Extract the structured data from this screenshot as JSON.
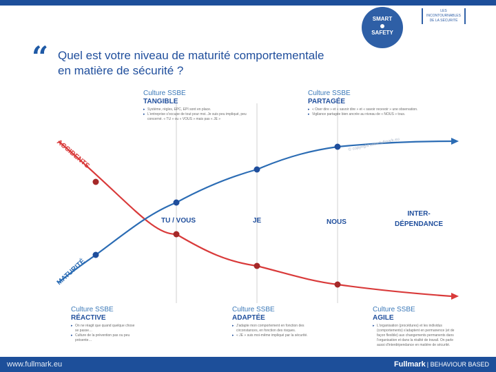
{
  "header": {
    "badge_lines": [
      "SMART",
      "SAFETY"
    ],
    "brand_small_lines": [
      "LES INCONTOURNABLES",
      "DE LA SÉCURITÉ"
    ]
  },
  "question": {
    "line1": "Quel est votre niveau  de maturité comportementale",
    "line2": "en matière de sécurité ?"
  },
  "colors": {
    "maturity": "#2b6cb4",
    "accidents": "#d93a3a",
    "dot_red": "#a52828",
    "dot_blue": "#1f4e9c",
    "text_blue": "#1f4e9c",
    "footer": "#1d4f9a"
  },
  "curves": {
    "accidents_label": "ACCIDENTS",
    "maturity_label": "MATURITÉ"
  },
  "stages": {
    "stage1": "TU / VOUS",
    "stage2": "JE",
    "stage3": "NOUS",
    "stage4_line1": "INTER-",
    "stage4_line2": "DÉPENDANCE"
  },
  "copyright": "© copyright www.fullmark.eu",
  "cultures": {
    "tangible": {
      "line1": "Culture SSBE",
      "line2": "TANGIBLE",
      "bullets": [
        "Système, règles, EPC, EPI sont en place.",
        "L'entreprise s'occupe de tout pour moi. Je suis peu impliqué, peu concerné. « TU » ou « VOUS » mais pas « JE »"
      ]
    },
    "partagee": {
      "line1": "Culture SSBE",
      "line2": "PARTAGÉE",
      "bullets": [
        "« Oser dire » et « savoir dire » et « savoir recevoir » une observation.",
        "Vigilance partagée bien ancrée au niveau de « NOUS » tous."
      ]
    },
    "reactive": {
      "line1": "Culture SSBE",
      "line2": "RÉACTIVE",
      "bullets": [
        "On ne réagit que quand quelque chose se passe…",
        "Culture de la prévention pas ou peu présente…"
      ]
    },
    "adaptee": {
      "line1": "Culture SSBE",
      "line2": "ADAPTÉE",
      "bullets": [
        "J'adapte mon comportement en fonction des circonstances, en fonction des risques.",
        "« JE » suis moi-même impliqué par la sécurité."
      ]
    },
    "agile": {
      "line1": "Culture SSBE",
      "line2": "AGILE",
      "bullets": [
        "L'organisation (procédures) et les individus (comportements) s'adaptent en permanence (et de façon flexible) aux changements permanents dans l'organisation et dans la réalité de travail. On parle aussi d'interdépendance en matière de sécurité."
      ]
    }
  },
  "footer": {
    "url": "www.fullmark.eu",
    "brand": "Fullmark",
    "tagline": "| BEHAVIOUR BASED"
  }
}
